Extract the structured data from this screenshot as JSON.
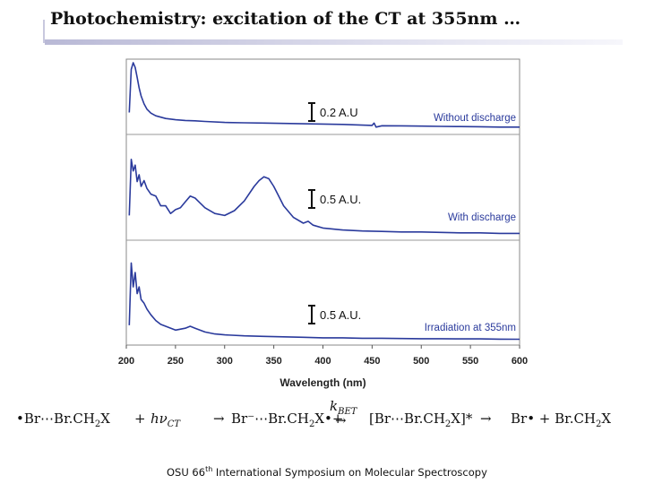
{
  "slide": {
    "title": "Photochemistry: excitation of the CT at 355nm …",
    "footer_prefix": "OSU 66",
    "footer_sup": "th",
    "footer_suffix": " International Symposium on Molecular Spectroscopy"
  },
  "equation": {
    "reactant": "•Br⋯Br.CH",
    "reactant_sub": "2",
    "reactant_end": "X",
    "plus1": "+",
    "photon": "hν",
    "photon_sub": "CT",
    "arrow1": "→",
    "product1": "Br⁻⋯Br.CH",
    "product1_sub": "2",
    "product1_end": "X•+",
    "rate": "k",
    "rate_sub": "BET",
    "arrow2": "→",
    "product2": "[Br⋯Br.CH",
    "product2_sub": "2",
    "product2_end": "X]*",
    "arrow3": "→",
    "product3": "Br• + Br.CH",
    "product3_sub": "2",
    "product3_end": "X"
  },
  "chart_data": {
    "type": "line",
    "xlabel": "Wavelength (nm)",
    "xlim": [
      200,
      600
    ],
    "xticks": [
      200,
      250,
      300,
      350,
      400,
      450,
      500,
      550,
      600
    ],
    "line_color": "#2a3a9c",
    "panels": [
      {
        "name": "Without discharge",
        "scale_bar": "0.2 A.U",
        "x": [
          203,
          205,
          207,
          209,
          211,
          213,
          215,
          218,
          221,
          225,
          230,
          235,
          240,
          250,
          260,
          270,
          280,
          300,
          320,
          340,
          360,
          380,
          400,
          420,
          440,
          450,
          452,
          454,
          460,
          480,
          500,
          520,
          540,
          560,
          580,
          600
        ],
        "y": [
          0.25,
          0.9,
          1.0,
          0.93,
          0.78,
          0.62,
          0.5,
          0.38,
          0.3,
          0.24,
          0.2,
          0.18,
          0.16,
          0.14,
          0.13,
          0.125,
          0.115,
          0.1,
          0.095,
          0.09,
          0.085,
          0.08,
          0.075,
          0.07,
          0.06,
          0.055,
          0.09,
          0.03,
          0.05,
          0.048,
          0.045,
          0.04,
          0.038,
          0.035,
          0.03,
          0.03
        ]
      },
      {
        "name": "With discharge",
        "scale_bar": "0.5 A.U.",
        "x": [
          203,
          205,
          207,
          209,
          211,
          213,
          215,
          218,
          221,
          225,
          230,
          235,
          240,
          245,
          250,
          255,
          260,
          265,
          270,
          275,
          280,
          290,
          300,
          310,
          320,
          330,
          335,
          340,
          345,
          350,
          355,
          360,
          370,
          380,
          385,
          390,
          400,
          420,
          440,
          460,
          480,
          500,
          520,
          540,
          560,
          580,
          600
        ],
        "y": [
          0.2,
          0.78,
          0.66,
          0.72,
          0.55,
          0.62,
          0.5,
          0.56,
          0.48,
          0.42,
          0.4,
          0.3,
          0.3,
          0.22,
          0.26,
          0.28,
          0.34,
          0.4,
          0.38,
          0.33,
          0.28,
          0.22,
          0.2,
          0.25,
          0.35,
          0.5,
          0.56,
          0.6,
          0.58,
          0.5,
          0.4,
          0.3,
          0.18,
          0.12,
          0.14,
          0.1,
          0.07,
          0.05,
          0.04,
          0.035,
          0.03,
          0.03,
          0.025,
          0.02,
          0.02,
          0.015,
          0.015
        ]
      },
      {
        "name": "Irradiation at 355nm",
        "scale_bar": "0.5 A.U.",
        "x": [
          203,
          205,
          207,
          209,
          211,
          213,
          215,
          218,
          221,
          225,
          230,
          235,
          240,
          250,
          260,
          265,
          270,
          280,
          290,
          300,
          320,
          340,
          360,
          380,
          400,
          420,
          440,
          460,
          480,
          500,
          520,
          540,
          560,
          580,
          600
        ],
        "y": [
          0.15,
          0.8,
          0.55,
          0.7,
          0.48,
          0.55,
          0.42,
          0.38,
          0.32,
          0.26,
          0.2,
          0.16,
          0.14,
          0.1,
          0.12,
          0.14,
          0.12,
          0.08,
          0.06,
          0.05,
          0.04,
          0.035,
          0.03,
          0.025,
          0.02,
          0.02,
          0.015,
          0.015,
          0.012,
          0.01,
          0.01,
          0.008,
          0.008,
          0.006,
          0.005
        ]
      }
    ]
  }
}
